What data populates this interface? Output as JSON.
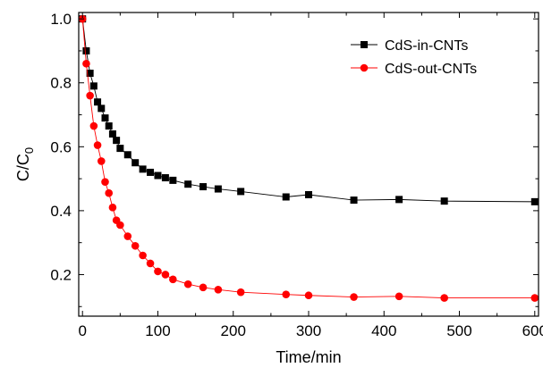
{
  "chart_data": {
    "type": "line",
    "title": "",
    "xlabel": "Time/min",
    "ylabel": "C/C",
    "ylabel_subscript": "0",
    "xlim": [
      -5,
      605
    ],
    "ylim": [
      0.07,
      1.02
    ],
    "xticks": [
      0,
      100,
      200,
      300,
      400,
      500,
      600
    ],
    "yticks": [
      0.2,
      0.4,
      0.6,
      0.8,
      1.0
    ],
    "xtick_labels": [
      "0",
      "100",
      "200",
      "300",
      "400",
      "500",
      "600"
    ],
    "ytick_labels": [
      "0.2",
      "0.4",
      "0.6",
      "0.8",
      "1.0"
    ],
    "grid": false,
    "legend_position": "top-right",
    "series": [
      {
        "name": "CdS-in-CNTs",
        "color": "#000000",
        "marker": "square",
        "x": [
          0,
          5,
          10,
          15,
          20,
          25,
          30,
          35,
          40,
          45,
          50,
          60,
          70,
          80,
          90,
          100,
          110,
          120,
          140,
          160,
          180,
          210,
          270,
          300,
          360,
          420,
          480,
          600
        ],
        "y": [
          1.0,
          0.9,
          0.83,
          0.79,
          0.74,
          0.72,
          0.69,
          0.665,
          0.64,
          0.62,
          0.595,
          0.575,
          0.55,
          0.53,
          0.52,
          0.51,
          0.503,
          0.495,
          0.483,
          0.475,
          0.468,
          0.46,
          0.443,
          0.45,
          0.433,
          0.435,
          0.43,
          0.428
        ]
      },
      {
        "name": "CdS-out-CNTs",
        "color": "#ff0000",
        "marker": "circle",
        "x": [
          0,
          5,
          10,
          15,
          20,
          25,
          30,
          35,
          40,
          45,
          50,
          60,
          70,
          80,
          90,
          100,
          110,
          120,
          140,
          160,
          180,
          210,
          270,
          300,
          360,
          420,
          480,
          600
        ],
        "y": [
          1.0,
          0.86,
          0.76,
          0.665,
          0.605,
          0.555,
          0.49,
          0.455,
          0.41,
          0.37,
          0.355,
          0.32,
          0.29,
          0.26,
          0.235,
          0.21,
          0.2,
          0.185,
          0.17,
          0.16,
          0.153,
          0.145,
          0.138,
          0.135,
          0.13,
          0.132,
          0.127,
          0.127
        ]
      }
    ]
  }
}
